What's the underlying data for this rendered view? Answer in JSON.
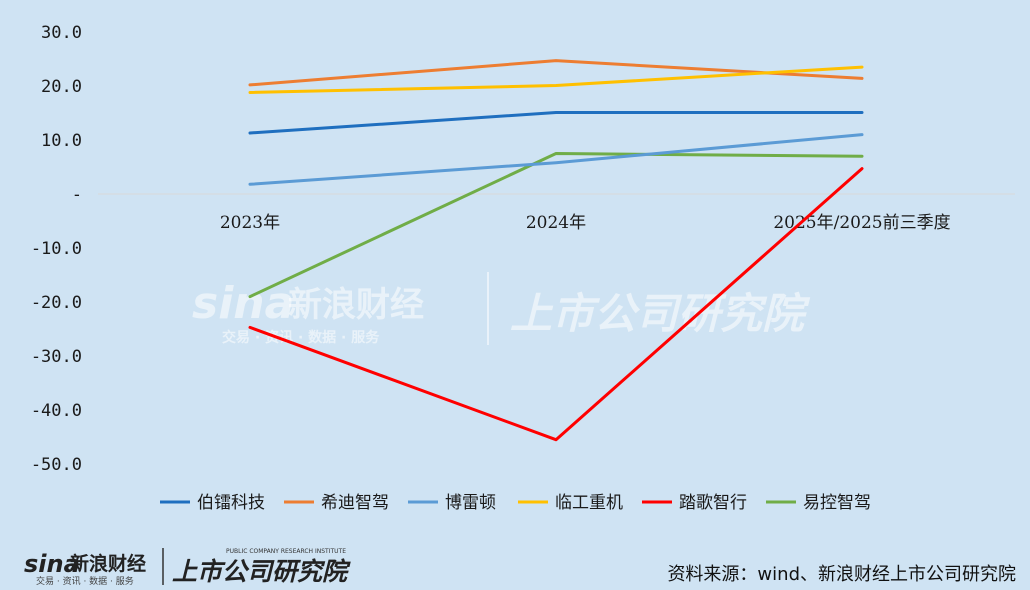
{
  "chart_data": {
    "type": "line",
    "categories": [
      "2023年",
      "2024年",
      "2025年/2025前三季度"
    ],
    "yticks": [
      "30.0",
      "20.0",
      "10.0",
      "-",
      "-10.0",
      "-20.0",
      "-30.0",
      "-40.0",
      "-50.0"
    ],
    "ylim": [
      -50,
      30
    ],
    "grid": false,
    "legend_position": "bottom",
    "series": [
      {
        "name": "伯镭科技",
        "color": "#1f6fbf",
        "values": [
          11.3,
          15.1,
          15.1
        ]
      },
      {
        "name": "希迪智驾",
        "color": "#ed7d31",
        "values": [
          20.2,
          24.7,
          21.4
        ]
      },
      {
        "name": "博雷顿",
        "color": "#5b9bd5",
        "values": [
          1.8,
          5.8,
          11.0
        ]
      },
      {
        "name": "临工重机",
        "color": "#ffc000",
        "values": [
          18.8,
          20.1,
          23.5
        ]
      },
      {
        "name": "踏歌智行",
        "color": "#ff0000",
        "values": [
          -24.7,
          -45.5,
          4.7
        ]
      },
      {
        "name": "易控智驾",
        "color": "#70ad47",
        "values": [
          -19.0,
          7.5,
          7.0
        ]
      }
    ]
  },
  "watermark": {
    "brand": "sina",
    "name": "新浪财经",
    "tagline": "交易 · 资讯 · 数据 · 服务",
    "institute": "上市公司研究院"
  },
  "footer": {
    "logo_brand": "sina",
    "logo_name": "新浪财经",
    "logo_tagline": "交易 · 资讯 · 数据 · 服务",
    "institute": "上市公司研究院",
    "institute_en": "PUBLIC COMPANY RESEARCH INSTITUTE",
    "source": "资料来源：wind、新浪财经上市公司研究院"
  }
}
